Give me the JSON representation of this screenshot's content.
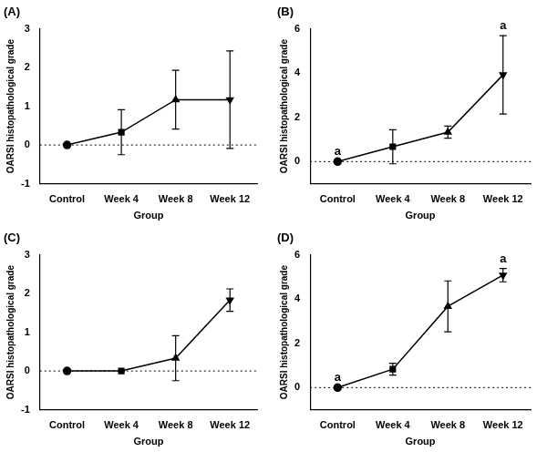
{
  "chart_data": [
    {
      "type": "line",
      "title": "(A)",
      "x_label": "Group",
      "y_label": "OARSI histopathological grade",
      "categories": [
        "Control",
        "Week 4",
        "Week 8",
        "Week 12"
      ],
      "series": [
        {
          "values": [
            0,
            0.33,
            1.17,
            1.17
          ],
          "errors": [
            0,
            0.58,
            0.76,
            1.26
          ],
          "color": "#000000",
          "marker": [
            "circle",
            "square",
            "triangle",
            "triangle-down"
          ],
          "line_style": "solid"
        }
      ],
      "ylim": [
        -1,
        3
      ],
      "yticks": [
        -1,
        0,
        1,
        2,
        3
      ],
      "grid": false,
      "reference_line": 0,
      "annotations": []
    },
    {
      "type": "line",
      "title": "(B)",
      "x_label": "Group",
      "y_label": "OARSI histopathological grade",
      "categories": [
        "Control",
        "Week 4",
        "Week 8",
        "Week 12"
      ],
      "series": [
        {
          "values": [
            0,
            0.67,
            1.33,
            3.92
          ],
          "errors": [
            0,
            0.77,
            0.27,
            1.77
          ],
          "color": "#000000",
          "marker": [
            "circle",
            "square",
            "triangle",
            "triangle-down"
          ],
          "line_style": "solid"
        }
      ],
      "ylim": [
        -1,
        6
      ],
      "yticks": [
        0,
        2,
        4,
        6
      ],
      "grid": false,
      "reference_line": 0,
      "annotations": [
        {
          "category": "Control",
          "text": "a"
        },
        {
          "category": "Week 12",
          "text": "a"
        }
      ]
    },
    {
      "type": "line",
      "title": "(C)",
      "x_label": "Group",
      "y_label": "OARSI histopathological grade",
      "categories": [
        "Control",
        "Week 4",
        "Week 8",
        "Week 12"
      ],
      "series": [
        {
          "values": [
            0,
            0,
            0.33,
            1.83
          ],
          "errors": [
            0,
            0,
            0.58,
            0.29
          ],
          "color": "#000000",
          "marker": [
            "circle",
            "square",
            "triangle",
            "triangle-down"
          ],
          "line_style": "solid"
        }
      ],
      "ylim": [
        -1,
        3
      ],
      "yticks": [
        -1,
        0,
        1,
        2,
        3
      ],
      "grid": false,
      "reference_line": 0,
      "annotations": []
    },
    {
      "type": "line",
      "title": "(D)",
      "x_label": "Group",
      "y_label": "OARSI histopathological grade",
      "categories": [
        "Control",
        "Week 4",
        "Week 8",
        "Week 12"
      ],
      "series": [
        {
          "values": [
            0,
            0.83,
            3.67,
            5.08
          ],
          "errors": [
            0,
            0.27,
            1.15,
            0.3
          ],
          "color": "#000000",
          "marker": [
            "circle",
            "square",
            "triangle",
            "triangle-down"
          ],
          "line_style": "solid"
        }
      ],
      "ylim": [
        -1,
        6
      ],
      "yticks": [
        0,
        2,
        4,
        6
      ],
      "grid": false,
      "reference_line": 0,
      "annotations": [
        {
          "category": "Control",
          "text": "a"
        },
        {
          "category": "Week 12",
          "text": "a"
        }
      ]
    }
  ]
}
